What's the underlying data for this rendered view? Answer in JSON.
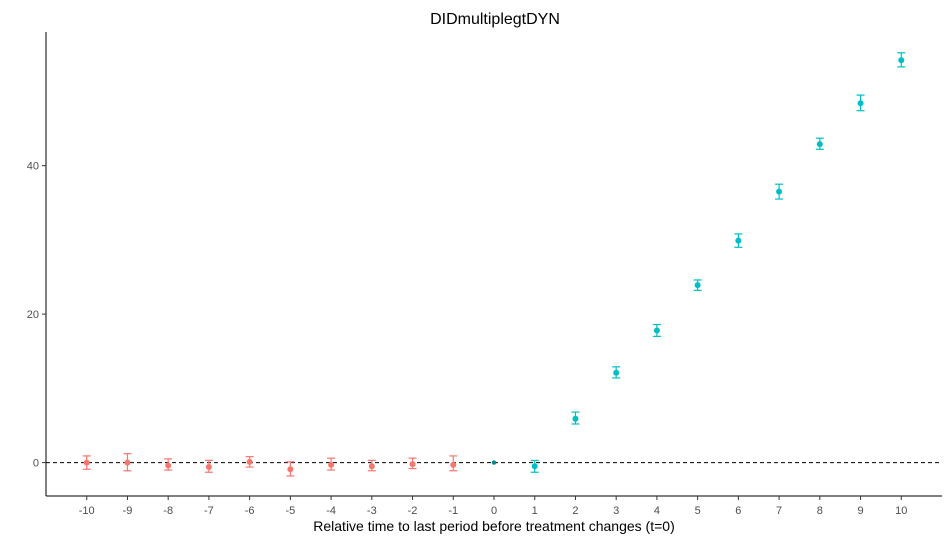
{
  "chart_data": {
    "type": "scatter",
    "title": "DIDmultiplegtDYN",
    "xlabel": "Relative time to last period before treatment changes (t=0)",
    "ylabel": "",
    "xlim": [
      -11,
      11
    ],
    "ylim": [
      -4.5,
      58
    ],
    "xticks": [
      -10,
      -9,
      -8,
      -7,
      -6,
      -5,
      -4,
      -3,
      -2,
      -1,
      0,
      1,
      2,
      3,
      4,
      5,
      6,
      7,
      8,
      9,
      10
    ],
    "yticks": [
      0,
      20,
      40
    ],
    "reference_line": {
      "y": 0,
      "style": "dashed",
      "color": "#000000"
    },
    "grid": false,
    "legend": "none",
    "colors": {
      "pre": "#F8766D",
      "post": "#00BFC4",
      "reference": "#008B8B"
    },
    "points": [
      {
        "x": -10,
        "y": 0.0,
        "lo": -0.9,
        "hi": 0.9,
        "group": "pre"
      },
      {
        "x": -9,
        "y": 0.0,
        "lo": -1.1,
        "hi": 1.2,
        "group": "pre"
      },
      {
        "x": -8,
        "y": -0.4,
        "lo": -1.0,
        "hi": 0.5,
        "group": "pre"
      },
      {
        "x": -7,
        "y": -0.6,
        "lo": -1.3,
        "hi": 0.3,
        "group": "pre"
      },
      {
        "x": -6,
        "y": 0.1,
        "lo": -0.6,
        "hi": 0.8,
        "group": "pre"
      },
      {
        "x": -5,
        "y": -0.9,
        "lo": -1.8,
        "hi": 0.1,
        "group": "pre"
      },
      {
        "x": -4,
        "y": -0.3,
        "lo": -1.0,
        "hi": 0.6,
        "group": "pre"
      },
      {
        "x": -3,
        "y": -0.5,
        "lo": -1.1,
        "hi": 0.3,
        "group": "pre"
      },
      {
        "x": -2,
        "y": -0.2,
        "lo": -0.8,
        "hi": 0.6,
        "group": "pre"
      },
      {
        "x": -1,
        "y": -0.3,
        "lo": -1.1,
        "hi": 0.9,
        "group": "pre"
      },
      {
        "x": 0,
        "y": 0.0,
        "lo": 0.0,
        "hi": 0.0,
        "group": "reference"
      },
      {
        "x": 1,
        "y": -0.5,
        "lo": -1.3,
        "hi": 0.3,
        "group": "post"
      },
      {
        "x": 2,
        "y": 5.9,
        "lo": 5.2,
        "hi": 6.8,
        "group": "post"
      },
      {
        "x": 3,
        "y": 12.1,
        "lo": 11.4,
        "hi": 12.9,
        "group": "post"
      },
      {
        "x": 4,
        "y": 17.8,
        "lo": 17.0,
        "hi": 18.6,
        "group": "post"
      },
      {
        "x": 5,
        "y": 23.9,
        "lo": 23.2,
        "hi": 24.6,
        "group": "post"
      },
      {
        "x": 6,
        "y": 29.9,
        "lo": 29.0,
        "hi": 30.8,
        "group": "post"
      },
      {
        "x": 7,
        "y": 36.5,
        "lo": 35.5,
        "hi": 37.5,
        "group": "post"
      },
      {
        "x": 8,
        "y": 42.9,
        "lo": 42.2,
        "hi": 43.7,
        "group": "post"
      },
      {
        "x": 9,
        "y": 48.4,
        "lo": 47.4,
        "hi": 49.5,
        "group": "post"
      },
      {
        "x": 10,
        "y": 54.2,
        "lo": 53.3,
        "hi": 55.2,
        "group": "post"
      }
    ]
  }
}
